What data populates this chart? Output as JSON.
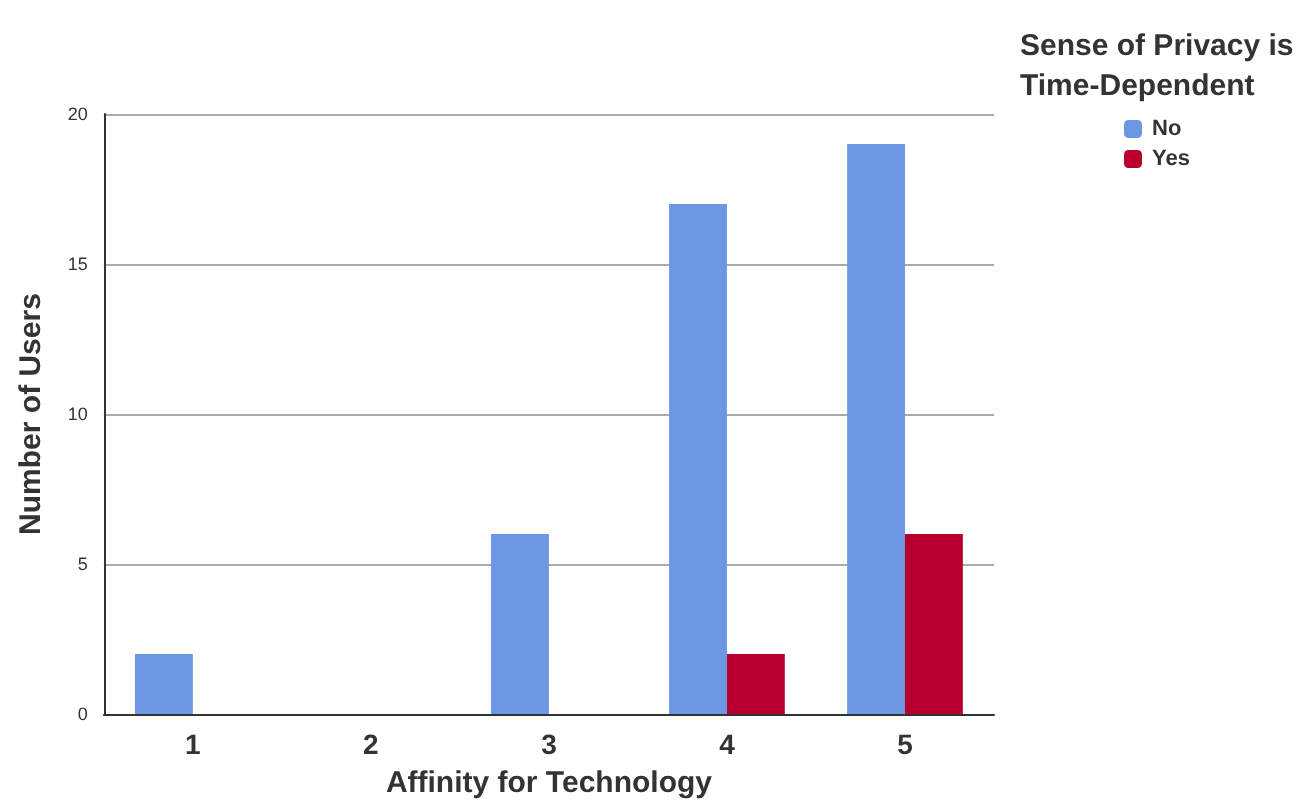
{
  "chart_data": {
    "type": "bar",
    "xlabel": "Affinity for Technology",
    "ylabel": "Number of Users",
    "legend_title": "Sense of Privacy is Time-Dependent",
    "categories": [
      "1",
      "2",
      "3",
      "4",
      "5"
    ],
    "series": [
      {
        "name": "No",
        "color": "#6d97e3",
        "values": [
          2,
          0,
          6,
          17,
          19
        ]
      },
      {
        "name": "Yes",
        "color": "#b8002f",
        "values": [
          0,
          0,
          0,
          2,
          6
        ]
      }
    ],
    "ylim": [
      0,
      20
    ],
    "yticks": [
      0,
      5,
      10,
      15,
      20
    ],
    "grid": "y",
    "legend": "top right"
  }
}
